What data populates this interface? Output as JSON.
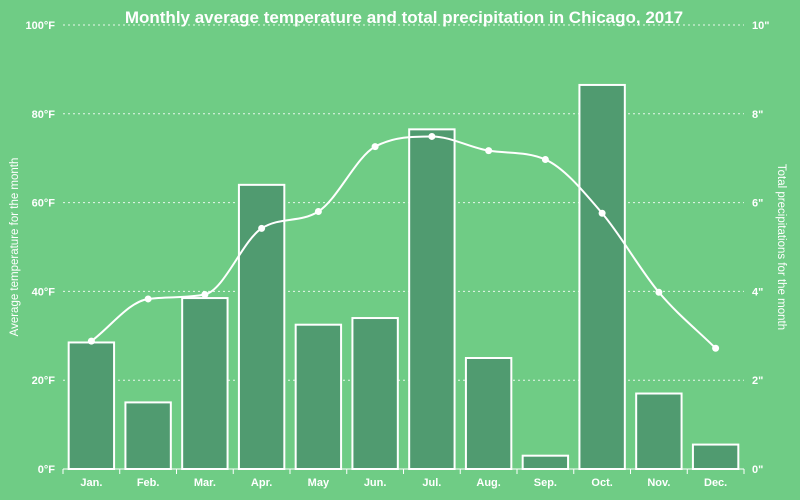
{
  "chart_data": {
    "type": "bar",
    "title": "Monthly average temperature and total precipitation in Chicago, 2017",
    "categories": [
      "Jan.",
      "Feb.",
      "Mar.",
      "Apr.",
      "May",
      "Jun.",
      "Jul.",
      "Aug.",
      "Sep.",
      "Oct.",
      "Nov.",
      "Dec."
    ],
    "y_left": {
      "label": "Average temperature for the month",
      "lim": [
        0,
        100
      ],
      "ticks": [
        "0°F",
        "20°F",
        "40°F",
        "60°F",
        "80°F",
        "100°F"
      ]
    },
    "y_right": {
      "label": "Total precipitations for the month",
      "lim": [
        0,
        10
      ],
      "ticks": [
        "0\"",
        "2\"",
        "4\"",
        "6\"",
        "8\"",
        "10\""
      ]
    },
    "series": [
      {
        "type": "bar",
        "axis": "right",
        "values": [
          2.85,
          1.5,
          3.85,
          6.4,
          3.25,
          3.4,
          7.65,
          2.5,
          0.3,
          8.65,
          1.7,
          0.55
        ]
      },
      {
        "type": "line",
        "axis": "left",
        "values": [
          28.8,
          38.3,
          39.3,
          54.2,
          58.0,
          72.6,
          74.9,
          71.7,
          69.7,
          57.6,
          39.8,
          27.2
        ]
      }
    ],
    "grid": true,
    "colors": {
      "background": "#6fcc85",
      "bar": "#509b70",
      "line": "#ffffff"
    }
  }
}
